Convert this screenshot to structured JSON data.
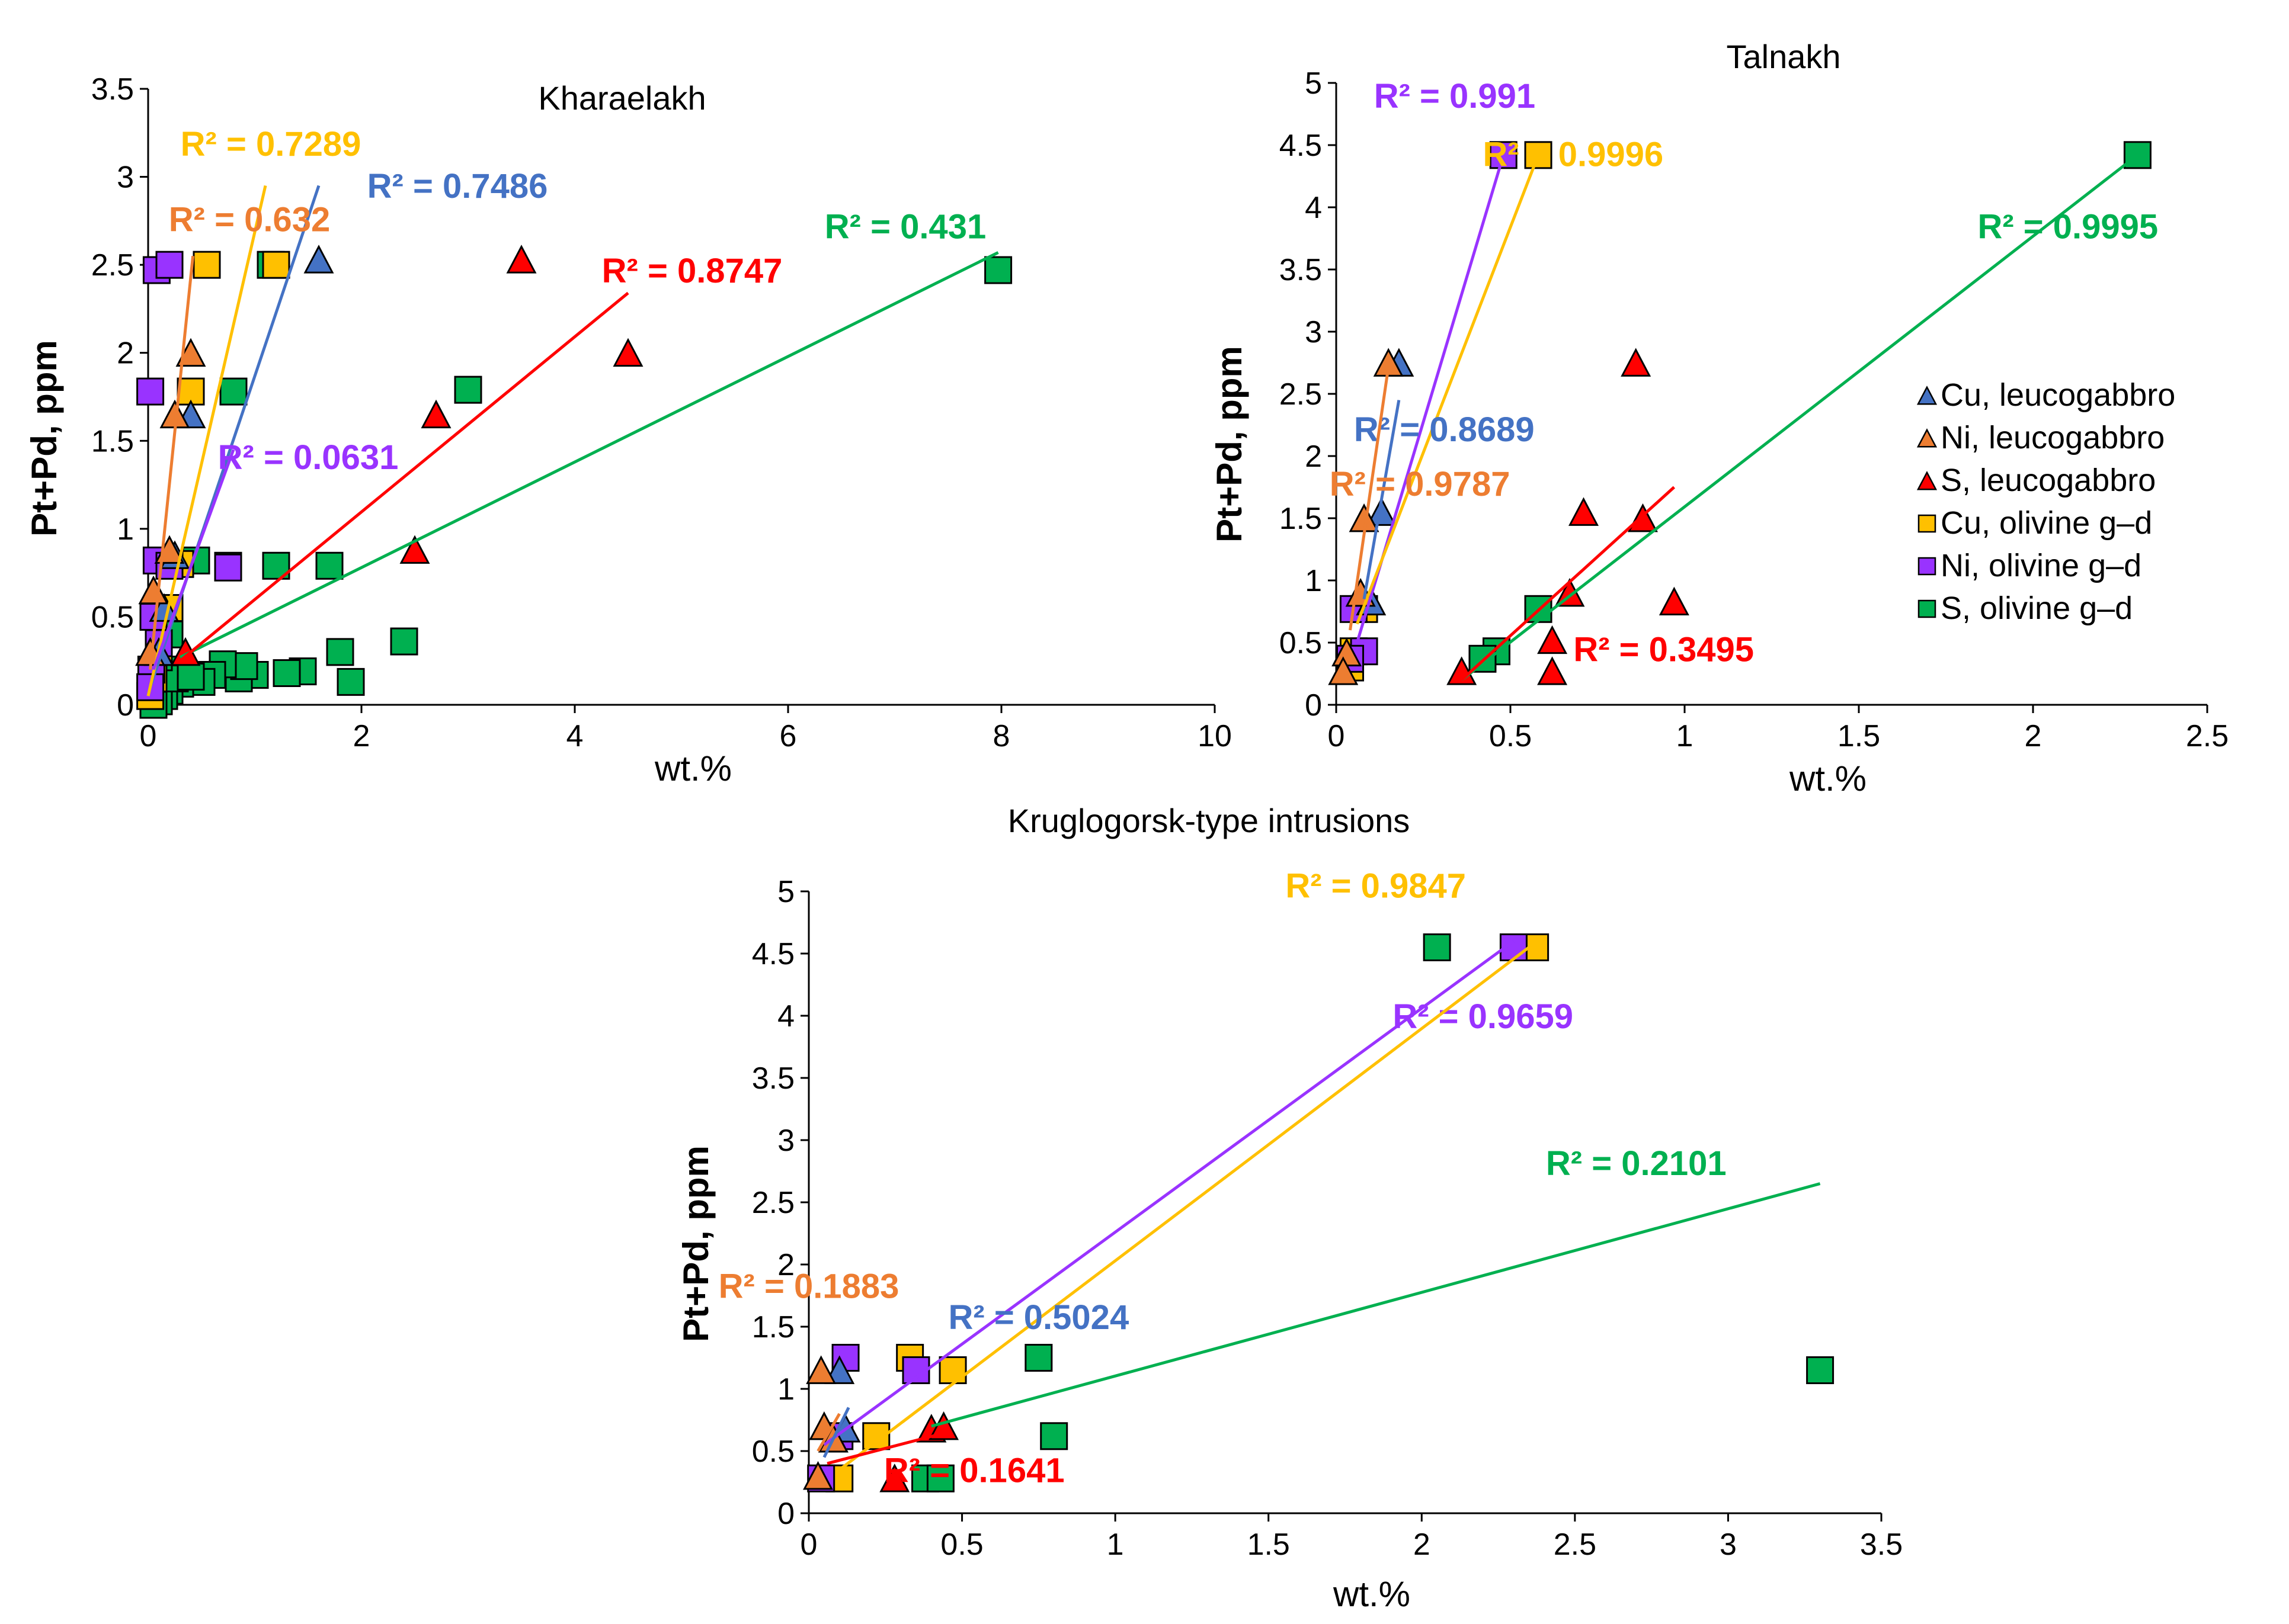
{
  "colors": {
    "Cu_leuco": "#4472C4",
    "Ni_leuco": "#ED7D31",
    "S_leuco": "#FF0000",
    "Cu_olivine": "#FFC000",
    "Ni_olivine": "#9933FF",
    "S_olivine": "#00B050"
  },
  "legend": {
    "items": [
      {
        "key": "Cu_leuco",
        "label": "Cu, leucogabbro",
        "marker": "triangle"
      },
      {
        "key": "Ni_leuco",
        "label": "Ni, leucogabbro",
        "marker": "triangle"
      },
      {
        "key": "S_leuco",
        "label": "S, leucogabbro",
        "marker": "triangle"
      },
      {
        "key": "Cu_olivine",
        "label": "Cu, olivine g–d",
        "marker": "square"
      },
      {
        "key": "Ni_olivine",
        "label": "Ni, olivine g–d",
        "marker": "square"
      },
      {
        "key": "S_olivine",
        "label": "S, olivine g–d",
        "marker": "square"
      }
    ]
  },
  "chart_data": [
    {
      "id": "kharaelakh",
      "type": "scatter",
      "title": "Kharaelakh",
      "xlabel": "wt.%",
      "ylabel": "Pt+Pd, ppm",
      "xlim": [
        0,
        10
      ],
      "ylim": [
        0,
        3.5
      ],
      "xticks": [
        "0",
        "2",
        "4",
        "6",
        "8",
        "10"
      ],
      "yticks": [
        "0",
        "0.5",
        "1",
        "1.5",
        "2",
        "2.5",
        "3",
        "3.5"
      ],
      "series": [
        {
          "key": "S_olivine",
          "marker": "square",
          "points": [
            [
              7.97,
              2.47
            ],
            [
              3.0,
              1.79
            ],
            [
              1.7,
              0.79
            ],
            [
              1.2,
              0.79
            ],
            [
              0.75,
              0.79
            ],
            [
              2.4,
              0.36
            ],
            [
              1.8,
              0.3
            ],
            [
              1.45,
              0.19
            ],
            [
              1.3,
              0.18
            ],
            [
              1.9,
              0.13
            ],
            [
              1.0,
              0.17
            ],
            [
              0.85,
              0.15
            ],
            [
              0.9,
              0.22
            ],
            [
              0.7,
              0.23
            ],
            [
              0.6,
              0.17
            ],
            [
              0.5,
              0.13
            ],
            [
              0.3,
              0.12
            ],
            [
              0.2,
              0.08
            ],
            [
              0.15,
              0.05
            ],
            [
              0.1,
              0.02
            ],
            [
              0.05,
              0.0
            ],
            [
              0.15,
              0.2
            ],
            [
              0.25,
              0.15
            ],
            [
              0.4,
              0.16
            ],
            [
              0.45,
              0.82
            ],
            [
              0.8,
              1.78
            ],
            [
              1.15,
              2.5
            ],
            [
              0.2,
              0.4
            ],
            [
              0.1,
              0.27
            ]
          ]
        },
        {
          "key": "Cu_olivine",
          "marker": "square",
          "points": [
            [
              1.2,
              2.5
            ],
            [
              0.55,
              2.5
            ],
            [
              0.4,
              1.78
            ],
            [
              0.3,
              0.8
            ],
            [
              0.2,
              0.55
            ],
            [
              0.1,
              0.3
            ],
            [
              0.05,
              0.15
            ],
            [
              0.02,
              0.05
            ]
          ]
        },
        {
          "key": "Ni_olivine",
          "marker": "square",
          "points": [
            [
              0.08,
              2.47
            ],
            [
              0.2,
              2.5
            ],
            [
              0.02,
              1.78
            ],
            [
              0.08,
              0.82
            ],
            [
              0.2,
              0.79
            ],
            [
              0.75,
              0.78
            ],
            [
              0.05,
              0.5
            ],
            [
              0.03,
              0.2
            ],
            [
              0.1,
              0.35
            ],
            [
              0.02,
              0.1
            ]
          ]
        },
        {
          "key": "Cu_leuco",
          "marker": "triangle",
          "points": [
            [
              1.6,
              2.53
            ],
            [
              0.4,
              1.65
            ],
            [
              0.25,
              0.85
            ],
            [
              0.15,
              0.55
            ],
            [
              0.1,
              0.3
            ]
          ]
        },
        {
          "key": "Ni_leuco",
          "marker": "triangle",
          "points": [
            [
              0.4,
              2.0
            ],
            [
              0.25,
              1.65
            ],
            [
              0.2,
              0.88
            ],
            [
              0.05,
              0.65
            ],
            [
              0.02,
              0.3
            ]
          ]
        },
        {
          "key": "S_leuco",
          "marker": "triangle",
          "points": [
            [
              3.5,
              2.53
            ],
            [
              4.5,
              2.0
            ],
            [
              2.7,
              1.65
            ],
            [
              2.5,
              0.88
            ],
            [
              0.35,
              0.3
            ]
          ]
        }
      ],
      "trendlines": [
        {
          "key": "S_olivine",
          "from": [
            0.3,
            0.27
          ],
          "to": [
            7.97,
            2.57
          ],
          "r2": "R² = 0.431",
          "label_at": [
            7.1,
            2.65
          ]
        },
        {
          "key": "S_leuco",
          "from": [
            0.3,
            0.25
          ],
          "to": [
            4.5,
            2.34
          ],
          "r2": "R² = 0.8747",
          "label_at": [
            5.1,
            2.4
          ]
        },
        {
          "key": "Cu_leuco",
          "from": [
            0.02,
            0.1
          ],
          "to": [
            1.6,
            2.95
          ],
          "r2": "R² = 0.7486",
          "label_at": [
            2.9,
            2.88
          ]
        },
        {
          "key": "Cu_olivine",
          "from": [
            0.0,
            0.05
          ],
          "to": [
            1.1,
            2.95
          ],
          "r2": "R² = 0.7289",
          "label_at": [
            1.15,
            3.12
          ]
        },
        {
          "key": "Ni_leuco",
          "from": [
            0.02,
            0.2
          ],
          "to": [
            0.42,
            2.55
          ],
          "r2": "R² = 0.632",
          "label_at": [
            0.95,
            2.69
          ]
        },
        {
          "key": "Ni_olivine",
          "from": [
            0.05,
            0.2
          ],
          "to": [
            0.8,
            1.45
          ],
          "r2": "R² = 0.0631",
          "label_at": [
            1.5,
            1.34
          ]
        }
      ]
    },
    {
      "id": "talnakh",
      "type": "scatter",
      "title": "Talnakh",
      "xlabel": "wt.%",
      "ylabel": "Pt+Pd, ppm",
      "xlim": [
        0,
        2.5
      ],
      "ylim": [
        0,
        5
      ],
      "xticks": [
        "0",
        "0.5",
        "1",
        "1.5",
        "2",
        "2.5"
      ],
      "yticks": [
        "0",
        "0.5",
        "1",
        "1.5",
        "2",
        "2.5",
        "3",
        "3.5",
        "4",
        "4.5",
        "5"
      ],
      "series": [
        {
          "key": "S_olivine",
          "marker": "square",
          "points": [
            [
              2.3,
              4.42
            ],
            [
              0.58,
              0.77
            ],
            [
              0.46,
              0.43
            ],
            [
              0.42,
              0.37
            ]
          ]
        },
        {
          "key": "Cu_olivine",
          "marker": "square",
          "points": [
            [
              0.58,
              4.42
            ],
            [
              0.08,
              0.77
            ],
            [
              0.05,
              0.43
            ],
            [
              0.04,
              0.3
            ]
          ]
        },
        {
          "key": "Ni_olivine",
          "marker": "square",
          "points": [
            [
              0.48,
              4.42
            ],
            [
              0.05,
              0.77
            ],
            [
              0.08,
              0.43
            ],
            [
              0.04,
              0.37
            ]
          ]
        },
        {
          "key": "Cu_leuco",
          "marker": "triangle",
          "points": [
            [
              0.18,
              2.75
            ],
            [
              0.13,
              1.55
            ],
            [
              0.1,
              0.83
            ]
          ]
        },
        {
          "key": "Ni_leuco",
          "marker": "triangle",
          "points": [
            [
              0.15,
              2.75
            ],
            [
              0.08,
              1.5
            ],
            [
              0.07,
              0.9
            ],
            [
              0.03,
              0.42
            ],
            [
              0.02,
              0.27
            ]
          ]
        },
        {
          "key": "S_leuco",
          "marker": "triangle",
          "points": [
            [
              0.86,
              2.75
            ],
            [
              0.71,
              1.55
            ],
            [
              0.88,
              1.5
            ],
            [
              0.97,
              0.83
            ],
            [
              0.67,
              0.9
            ],
            [
              0.62,
              0.52
            ],
            [
              0.62,
              0.27
            ],
            [
              0.36,
              0.27
            ]
          ]
        }
      ],
      "trendlines": [
        {
          "key": "Ni_olivine",
          "from": [
            0.06,
            0.5
          ],
          "to": [
            0.48,
            4.42
          ],
          "r2": "R² = 0.991",
          "label_at": [
            0.34,
            4.8
          ]
        },
        {
          "key": "Cu_olivine",
          "from": [
            0.06,
            0.65
          ],
          "to": [
            0.58,
            4.42
          ],
          "r2": "R² = 0.9996",
          "label_at": [
            0.68,
            4.33
          ]
        },
        {
          "key": "S_olivine",
          "from": [
            0.36,
            0.2
          ],
          "to": [
            2.3,
            4.42
          ],
          "r2": "R² = 0.9995",
          "label_at": [
            2.1,
            3.75
          ]
        },
        {
          "key": "Cu_leuco",
          "from": [
            0.08,
            0.85
          ],
          "to": [
            0.18,
            2.45
          ],
          "r2": "R² = 0.8689",
          "label_at": [
            0.31,
            2.12
          ]
        },
        {
          "key": "Ni_leuco",
          "from": [
            0.04,
            0.6
          ],
          "to": [
            0.15,
            2.72
          ],
          "r2": "R² = 0.9787",
          "label_at": [
            0.24,
            1.68
          ]
        },
        {
          "key": "S_leuco",
          "from": [
            0.36,
            0.2
          ],
          "to": [
            0.97,
            1.75
          ],
          "r2": "R² = 0.3495",
          "label_at": [
            0.94,
            0.35
          ]
        }
      ]
    },
    {
      "id": "kruglogorsk",
      "type": "scatter",
      "title": "Kruglogorsk-type intrusions",
      "xlabel": "wt.%",
      "ylabel": "Pt+Pd, ppm",
      "xlim": [
        0,
        3.5
      ],
      "ylim": [
        0,
        5
      ],
      "xticks": [
        "0",
        "0.5",
        "1",
        "1.5",
        "2",
        "2.5",
        "3",
        "3.5"
      ],
      "yticks": [
        "0",
        "0.5",
        "1",
        "1.5",
        "2",
        "2.5",
        "3",
        "3.5",
        "4",
        "4.5",
        "5"
      ],
      "series": [
        {
          "key": "S_olivine",
          "marker": "square",
          "points": [
            [
              2.05,
              4.55
            ],
            [
              3.3,
              1.15
            ],
            [
              0.75,
              1.25
            ],
            [
              0.8,
              0.62
            ],
            [
              0.38,
              0.28
            ],
            [
              0.43,
              0.28
            ]
          ]
        },
        {
          "key": "Cu_olivine",
          "marker": "square",
          "points": [
            [
              2.37,
              4.55
            ],
            [
              0.33,
              1.25
            ],
            [
              0.47,
              1.15
            ],
            [
              0.22,
              0.62
            ],
            [
              0.1,
              0.28
            ]
          ]
        },
        {
          "key": "Ni_olivine",
          "marker": "square",
          "points": [
            [
              2.3,
              4.55
            ],
            [
              0.12,
              1.25
            ],
            [
              0.35,
              1.15
            ],
            [
              0.1,
              0.62
            ],
            [
              0.04,
              0.28
            ]
          ]
        },
        {
          "key": "Cu_leuco",
          "marker": "triangle",
          "points": [
            [
              0.1,
              1.15
            ],
            [
              0.12,
              0.68
            ],
            [
              0.08,
              0.6
            ]
          ]
        },
        {
          "key": "Ni_leuco",
          "marker": "triangle",
          "points": [
            [
              0.04,
              1.15
            ],
            [
              0.05,
              0.7
            ],
            [
              0.08,
              0.6
            ],
            [
              0.03,
              0.3
            ]
          ]
        },
        {
          "key": "S_leuco",
          "marker": "triangle",
          "points": [
            [
              0.28,
              0.28
            ],
            [
              0.4,
              0.68
            ],
            [
              0.44,
              0.7
            ]
          ]
        }
      ],
      "trendlines": [
        {
          "key": "Ni_olivine",
          "from": [
            0.05,
            0.55
          ],
          "to": [
            2.3,
            4.6
          ],
          "r2": "R² = 0.9659",
          "label_at": [
            2.2,
            3.9
          ]
        },
        {
          "key": "Cu_olivine",
          "from": [
            0.1,
            0.35
          ],
          "to": [
            2.35,
            4.55
          ],
          "r2": "R² = 0.9847",
          "label_at": [
            1.85,
            4.95
          ]
        },
        {
          "key": "S_olivine",
          "from": [
            0.4,
            0.7
          ],
          "to": [
            3.3,
            2.65
          ],
          "r2": "R² = 0.2101",
          "label_at": [
            2.7,
            2.72
          ]
        },
        {
          "key": "Cu_leuco",
          "from": [
            0.05,
            0.45
          ],
          "to": [
            0.13,
            0.85
          ],
          "r2": "R² = 0.5024",
          "label_at": [
            0.75,
            1.48
          ]
        },
        {
          "key": "Ni_leuco",
          "from": [
            0.03,
            0.5
          ],
          "to": [
            0.1,
            0.8
          ],
          "r2": "R² = 0.1883",
          "label_at": [
            0.0,
            1.73
          ]
        },
        {
          "key": "S_leuco",
          "from": [
            0.06,
            0.4
          ],
          "to": [
            0.45,
            0.65
          ],
          "r2": "R² = 0.1641",
          "label_at": [
            0.54,
            0.25
          ]
        }
      ]
    }
  ]
}
